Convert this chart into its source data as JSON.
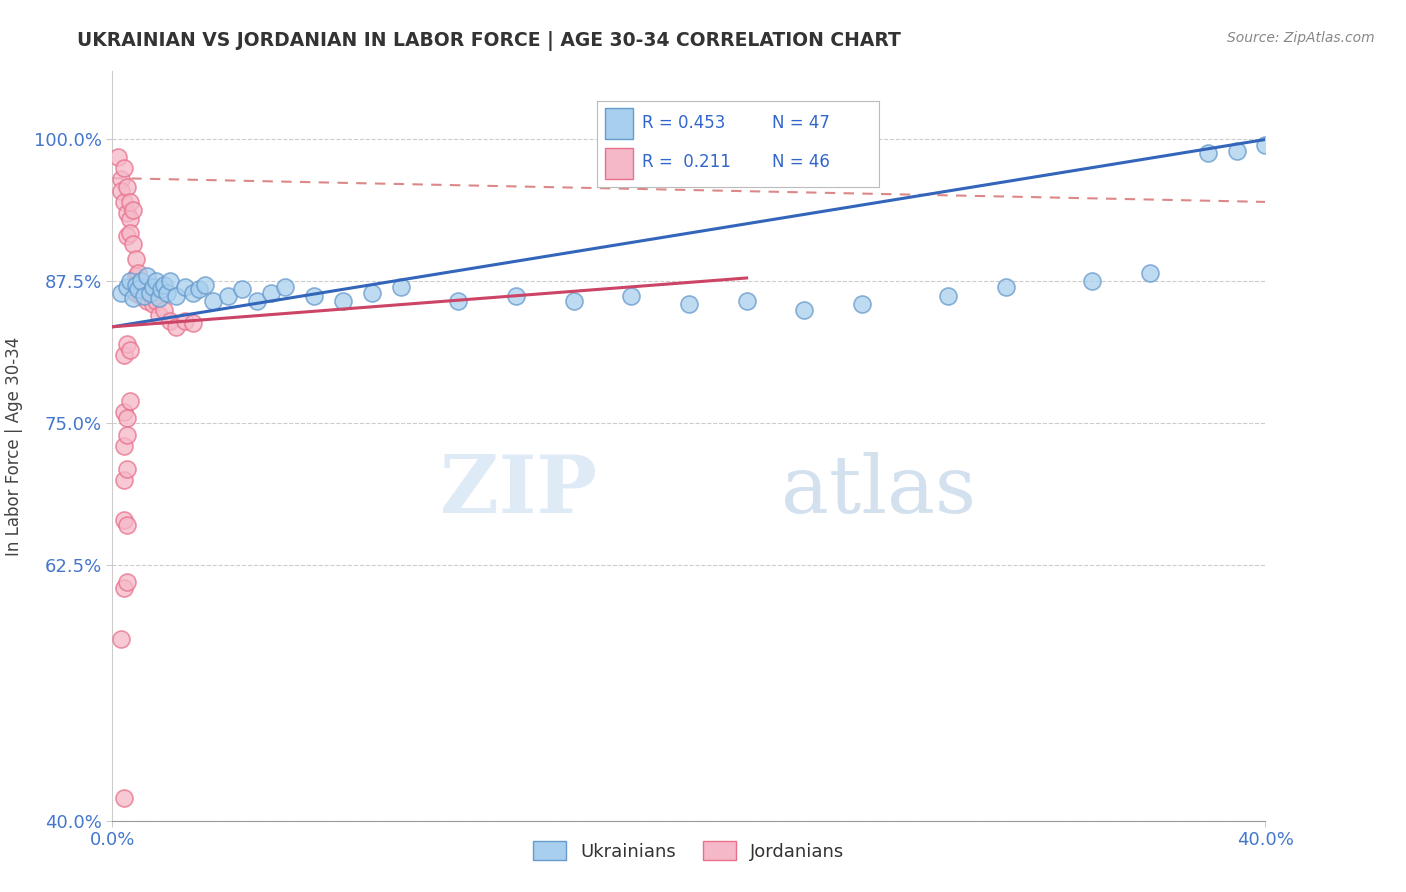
{
  "title": "UKRAINIAN VS JORDANIAN IN LABOR FORCE | AGE 30-34 CORRELATION CHART",
  "source_text": "Source: ZipAtlas.com",
  "ylabel": "In Labor Force | Age 30-34",
  "xlim": [
    0.0,
    0.4
  ],
  "ylim": [
    0.4,
    1.06
  ],
  "xtick_labels": [
    "0.0%",
    "40.0%"
  ],
  "ytick_labels": [
    "40.0%",
    "62.5%",
    "75.0%",
    "87.5%",
    "100.0%"
  ],
  "ytick_vals": [
    0.4,
    0.625,
    0.75,
    0.875,
    1.0
  ],
  "xtick_vals": [
    0.0,
    0.4
  ],
  "grid_color": "#cccccc",
  "watermark_zip": "ZIP",
  "watermark_atlas": "atlas",
  "legend_R_ukrainian": "0.453",
  "legend_N_ukrainian": "47",
  "legend_R_jordanian": "0.211",
  "legend_N_jordanian": "46",
  "ukr_fill": "#A8D0EE",
  "jor_fill": "#F5B8C8",
  "ukr_edge": "#6699CC",
  "jor_edge": "#E8708A",
  "ukr_line_color": "#3366BB",
  "jor_line_color": "#CC4466",
  "jor_dash_color": "#DD8888",
  "ukr_scatter": [
    [
      0.003,
      0.865
    ],
    [
      0.005,
      0.87
    ],
    [
      0.006,
      0.875
    ],
    [
      0.007,
      0.86
    ],
    [
      0.008,
      0.872
    ],
    [
      0.009,
      0.868
    ],
    [
      0.01,
      0.875
    ],
    [
      0.011,
      0.862
    ],
    [
      0.012,
      0.88
    ],
    [
      0.013,
      0.865
    ],
    [
      0.014,
      0.87
    ],
    [
      0.015,
      0.875
    ],
    [
      0.016,
      0.86
    ],
    [
      0.017,
      0.868
    ],
    [
      0.018,
      0.872
    ],
    [
      0.019,
      0.865
    ],
    [
      0.02,
      0.875
    ],
    [
      0.022,
      0.862
    ],
    [
      0.025,
      0.87
    ],
    [
      0.028,
      0.865
    ],
    [
      0.03,
      0.868
    ],
    [
      0.032,
      0.872
    ],
    [
      0.035,
      0.858
    ],
    [
      0.04,
      0.862
    ],
    [
      0.045,
      0.868
    ],
    [
      0.05,
      0.858
    ],
    [
      0.055,
      0.865
    ],
    [
      0.06,
      0.87
    ],
    [
      0.07,
      0.862
    ],
    [
      0.08,
      0.858
    ],
    [
      0.09,
      0.865
    ],
    [
      0.1,
      0.87
    ],
    [
      0.12,
      0.858
    ],
    [
      0.14,
      0.862
    ],
    [
      0.16,
      0.858
    ],
    [
      0.18,
      0.862
    ],
    [
      0.2,
      0.855
    ],
    [
      0.22,
      0.858
    ],
    [
      0.24,
      0.85
    ],
    [
      0.26,
      0.855
    ],
    [
      0.29,
      0.862
    ],
    [
      0.31,
      0.87
    ],
    [
      0.34,
      0.875
    ],
    [
      0.36,
      0.882
    ],
    [
      0.38,
      0.988
    ],
    [
      0.39,
      0.99
    ],
    [
      0.4,
      0.995
    ]
  ],
  "jor_scatter": [
    [
      0.002,
      0.985
    ],
    [
      0.003,
      0.965
    ],
    [
      0.003,
      0.955
    ],
    [
      0.004,
      0.975
    ],
    [
      0.004,
      0.945
    ],
    [
      0.005,
      0.958
    ],
    [
      0.005,
      0.935
    ],
    [
      0.005,
      0.915
    ],
    [
      0.006,
      0.945
    ],
    [
      0.006,
      0.93
    ],
    [
      0.006,
      0.918
    ],
    [
      0.007,
      0.938
    ],
    [
      0.007,
      0.908
    ],
    [
      0.008,
      0.895
    ],
    [
      0.008,
      0.88
    ],
    [
      0.008,
      0.865
    ],
    [
      0.009,
      0.882
    ],
    [
      0.01,
      0.875
    ],
    [
      0.01,
      0.862
    ],
    [
      0.011,
      0.87
    ],
    [
      0.012,
      0.858
    ],
    [
      0.013,
      0.865
    ],
    [
      0.014,
      0.855
    ],
    [
      0.015,
      0.858
    ],
    [
      0.016,
      0.845
    ],
    [
      0.018,
      0.85
    ],
    [
      0.02,
      0.84
    ],
    [
      0.022,
      0.835
    ],
    [
      0.025,
      0.84
    ],
    [
      0.028,
      0.838
    ],
    [
      0.004,
      0.81
    ],
    [
      0.005,
      0.82
    ],
    [
      0.006,
      0.815
    ],
    [
      0.004,
      0.76
    ],
    [
      0.005,
      0.755
    ],
    [
      0.006,
      0.77
    ],
    [
      0.004,
      0.73
    ],
    [
      0.005,
      0.74
    ],
    [
      0.004,
      0.7
    ],
    [
      0.005,
      0.71
    ],
    [
      0.004,
      0.665
    ],
    [
      0.005,
      0.66
    ],
    [
      0.004,
      0.605
    ],
    [
      0.005,
      0.61
    ],
    [
      0.003,
      0.56
    ],
    [
      0.004,
      0.42
    ]
  ]
}
